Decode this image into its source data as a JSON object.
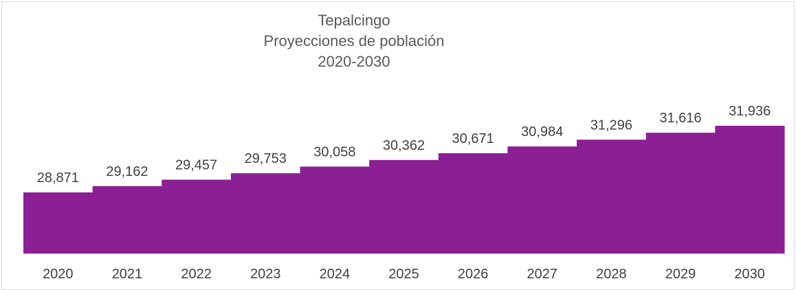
{
  "chart_data": {
    "type": "area",
    "title_lines": [
      "Tepalcingo",
      "Proyecciones de población",
      "2020-2030"
    ],
    "categories": [
      "2020",
      "2021",
      "2022",
      "2023",
      "2024",
      "2025",
      "2026",
      "2027",
      "2028",
      "2029",
      "2030"
    ],
    "series": [
      {
        "values": [
          28871,
          29162,
          29457,
          29753,
          30058,
          30362,
          30671,
          30984,
          31296,
          31616,
          31936
        ],
        "labels": [
          "28,871",
          "29,162",
          "29,457",
          "29,753",
          "30,058",
          "30,362",
          "30,671",
          "30,984",
          "31,296",
          "31,616",
          "31,936"
        ]
      }
    ],
    "step": true,
    "color": "#8b1f94",
    "grid": false,
    "legend": "none"
  }
}
